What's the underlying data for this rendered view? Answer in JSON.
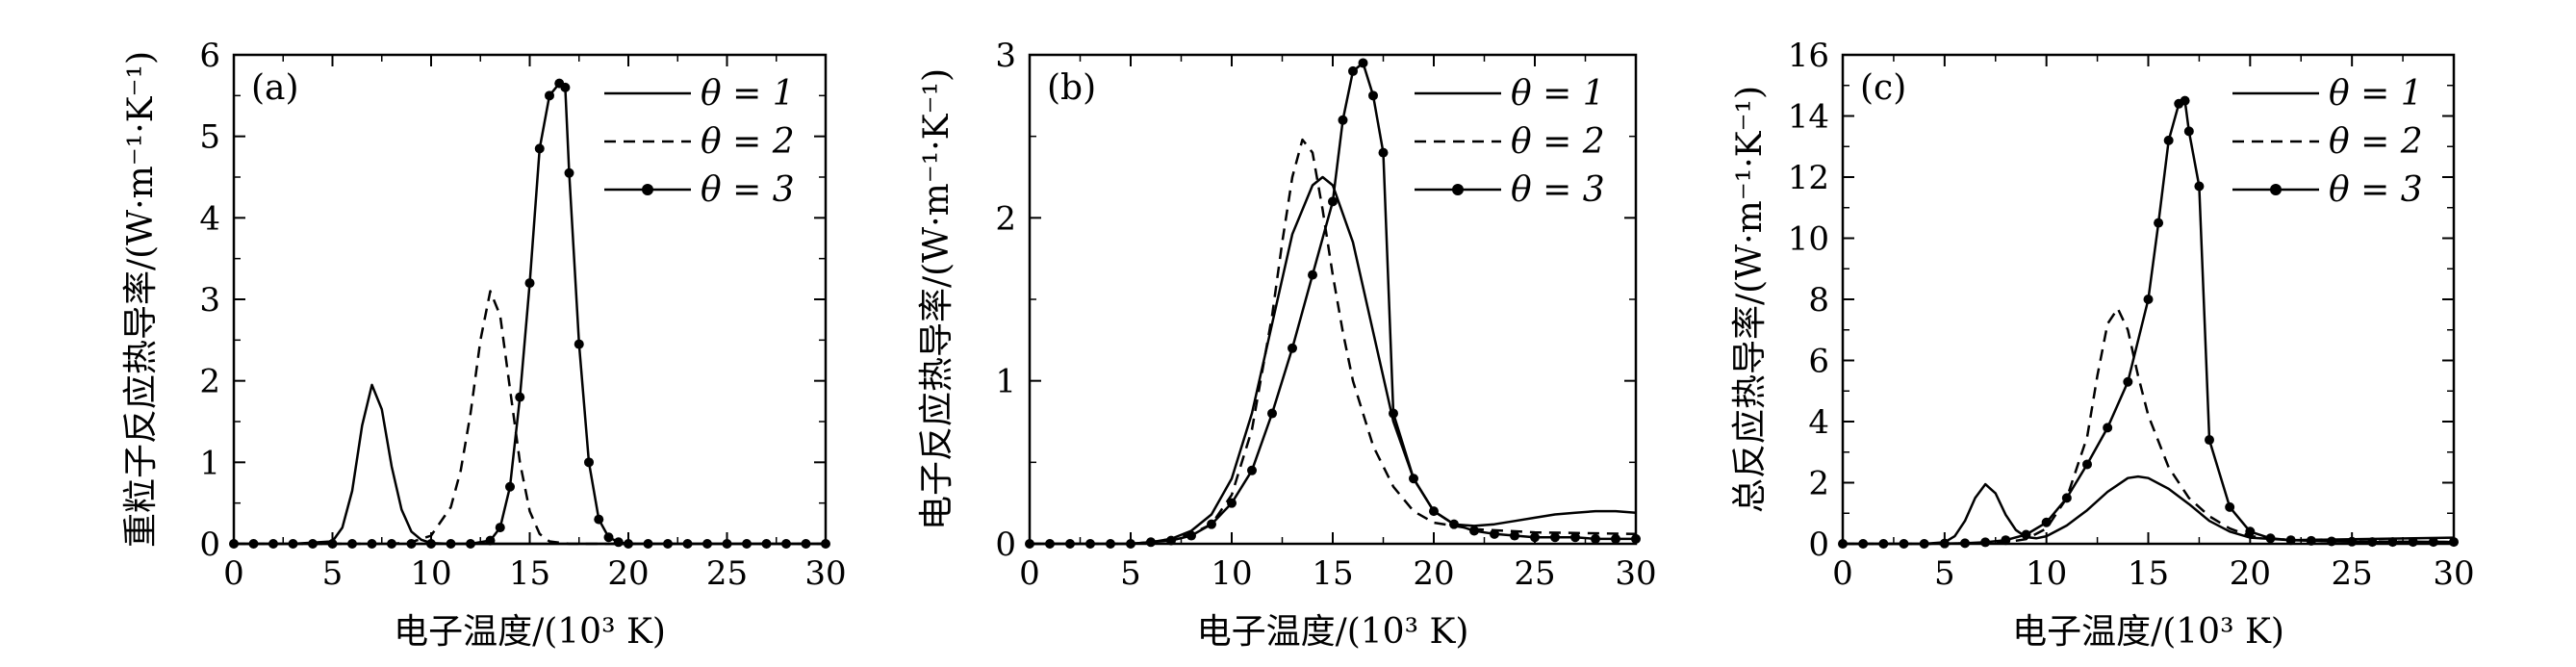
{
  "chart_data": [
    {
      "type": "line",
      "panel_label": "(a)",
      "xlabel": "电子温度/(10³ K)",
      "ylabel": "重粒子反应热导率/(W·m⁻¹·K⁻¹)",
      "xlim": [
        0,
        30
      ],
      "ylim": [
        0,
        6
      ],
      "xticks": [
        "0",
        "5",
        "10",
        "15",
        "20",
        "25",
        "30"
      ],
      "yticks": [
        "0",
        "1",
        "2",
        "3",
        "4",
        "5",
        "6"
      ],
      "legend_position": "top-right",
      "series": [
        {
          "name": "θ = 1",
          "style": "solid",
          "marker": "none",
          "x": [
            0,
            3,
            5,
            5.5,
            6,
            6.5,
            7,
            7.5,
            8,
            8.5,
            9,
            9.5,
            10,
            11,
            12,
            15,
            20,
            25,
            30
          ],
          "y": [
            0,
            0,
            0.03,
            0.2,
            0.65,
            1.45,
            1.95,
            1.65,
            0.95,
            0.42,
            0.15,
            0.05,
            0.01,
            0,
            0,
            0,
            0,
            0,
            0
          ]
        },
        {
          "name": "θ = 2",
          "style": "dashed",
          "marker": "none",
          "x": [
            0,
            5,
            8,
            9,
            10,
            11,
            11.5,
            12,
            12.5,
            13,
            13.5,
            14,
            14.5,
            15,
            15.5,
            16,
            17,
            20,
            30
          ],
          "y": [
            0,
            0,
            0,
            0.02,
            0.1,
            0.45,
            0.9,
            1.6,
            2.5,
            3.1,
            2.8,
            1.9,
            1.0,
            0.4,
            0.12,
            0.03,
            0,
            0,
            0
          ]
        },
        {
          "name": "θ = 3",
          "style": "solid",
          "marker": "dot",
          "x": [
            0,
            1,
            2,
            3,
            4,
            5,
            6,
            7,
            8,
            9,
            10,
            11,
            12,
            13,
            13.5,
            14,
            14.5,
            15,
            15.5,
            16,
            16.5,
            16.8,
            17,
            17.5,
            18,
            18.5,
            19,
            19.5,
            20,
            21,
            22,
            23,
            24,
            25,
            26,
            27,
            28,
            29,
            30
          ],
          "y": [
            0,
            0,
            0,
            0,
            0,
            0,
            0,
            0,
            0,
            0,
            0,
            0,
            0,
            0.04,
            0.2,
            0.7,
            1.8,
            3.2,
            4.85,
            5.5,
            5.65,
            5.6,
            4.55,
            2.45,
            1.0,
            0.3,
            0.08,
            0.02,
            0,
            0,
            0,
            0,
            0,
            0,
            0,
            0,
            0,
            0,
            0
          ]
        }
      ]
    },
    {
      "type": "line",
      "panel_label": "(b)",
      "xlabel": "电子温度/(10³ K)",
      "ylabel": "电子反应热导率/(W·m⁻¹·K⁻¹)",
      "xlim": [
        0,
        30
      ],
      "ylim": [
        0,
        3
      ],
      "xticks": [
        "0",
        "5",
        "10",
        "15",
        "20",
        "25",
        "30"
      ],
      "yticks": [
        "0",
        "1",
        "2",
        "3"
      ],
      "legend_position": "top-right",
      "series": [
        {
          "name": "θ = 1",
          "style": "solid",
          "marker": "none",
          "x": [
            0,
            5,
            6,
            7,
            8,
            9,
            10,
            11,
            12,
            13,
            14,
            14.5,
            15,
            16,
            17,
            18,
            19,
            20,
            21,
            22,
            23,
            24,
            25,
            26,
            27,
            28,
            29,
            30
          ],
          "y": [
            0,
            0,
            0.01,
            0.03,
            0.08,
            0.18,
            0.4,
            0.8,
            1.35,
            1.9,
            2.2,
            2.25,
            2.2,
            1.85,
            1.3,
            0.75,
            0.4,
            0.2,
            0.12,
            0.11,
            0.12,
            0.14,
            0.16,
            0.18,
            0.19,
            0.2,
            0.2,
            0.19
          ]
        },
        {
          "name": "θ = 2",
          "style": "dashed",
          "marker": "none",
          "x": [
            0,
            5,
            6,
            7,
            8,
            9,
            10,
            11,
            12,
            12.5,
            13,
            13.5,
            14,
            14.5,
            15,
            15.5,
            16,
            17,
            18,
            19,
            20,
            22,
            25,
            30
          ],
          "y": [
            0,
            0,
            0.01,
            0.03,
            0.06,
            0.12,
            0.3,
            0.7,
            1.4,
            1.85,
            2.25,
            2.48,
            2.4,
            2.05,
            1.65,
            1.3,
            1.0,
            0.6,
            0.35,
            0.2,
            0.13,
            0.09,
            0.07,
            0.06
          ]
        },
        {
          "name": "θ = 3",
          "style": "solid",
          "marker": "dot",
          "x": [
            0,
            1,
            2,
            3,
            4,
            5,
            6,
            7,
            8,
            9,
            10,
            11,
            12,
            13,
            14,
            15,
            15.5,
            16,
            16.5,
            17,
            17.5,
            18,
            19,
            20,
            21,
            22,
            23,
            24,
            25,
            26,
            27,
            28,
            29,
            30
          ],
          "y": [
            0,
            0,
            0,
            0,
            0,
            0,
            0.01,
            0.02,
            0.05,
            0.12,
            0.25,
            0.45,
            0.8,
            1.2,
            1.65,
            2.1,
            2.6,
            2.9,
            2.95,
            2.75,
            2.4,
            0.8,
            0.4,
            0.2,
            0.12,
            0.08,
            0.06,
            0.05,
            0.04,
            0.04,
            0.04,
            0.03,
            0.03,
            0.03
          ]
        }
      ]
    },
    {
      "type": "line",
      "panel_label": "(c)",
      "xlabel": "电子温度/(10³ K)",
      "ylabel": "总反应热导率/(W·m⁻¹·K⁻¹)",
      "xlim": [
        0,
        30
      ],
      "ylim": [
        0,
        16
      ],
      "xticks": [
        "0",
        "5",
        "10",
        "15",
        "20",
        "25",
        "30"
      ],
      "yticks": [
        "0",
        "2",
        "4",
        "6",
        "8",
        "10",
        "12",
        "14",
        "16"
      ],
      "legend_position": "top-right",
      "series": [
        {
          "name": "θ = 1",
          "style": "solid",
          "marker": "none",
          "x": [
            0,
            4,
            5,
            5.5,
            6,
            6.5,
            7,
            7.5,
            8,
            8.5,
            9,
            9.5,
            10,
            11,
            12,
            13,
            14,
            14.5,
            15,
            16,
            17,
            18,
            19,
            20,
            22,
            25,
            30
          ],
          "y": [
            0,
            0,
            0.05,
            0.25,
            0.75,
            1.5,
            1.95,
            1.65,
            0.95,
            0.45,
            0.22,
            0.18,
            0.25,
            0.6,
            1.1,
            1.7,
            2.15,
            2.2,
            2.15,
            1.8,
            1.3,
            0.75,
            0.4,
            0.2,
            0.12,
            0.15,
            0.2
          ]
        },
        {
          "name": "θ = 2",
          "style": "dashed",
          "marker": "none",
          "x": [
            0,
            5,
            8,
            9,
            10,
            11,
            12,
            12.5,
            13,
            13.5,
            14,
            14.5,
            15,
            16,
            17,
            18,
            19,
            20,
            22,
            25,
            30
          ],
          "y": [
            0,
            0,
            0.05,
            0.15,
            0.5,
            1.5,
            3.5,
            5.5,
            7.2,
            7.7,
            7.0,
            5.5,
            4.2,
            2.5,
            1.5,
            0.9,
            0.5,
            0.25,
            0.12,
            0.08,
            0.06
          ]
        },
        {
          "name": "θ = 3",
          "style": "solid",
          "marker": "dot",
          "x": [
            0,
            1,
            2,
            3,
            4,
            5,
            6,
            7,
            8,
            9,
            10,
            11,
            12,
            13,
            14,
            15,
            15.5,
            16,
            16.5,
            16.8,
            17,
            17.5,
            18,
            19,
            20,
            21,
            22,
            23,
            24,
            25,
            26,
            27,
            28,
            29,
            30
          ],
          "y": [
            0,
            0,
            0,
            0,
            0,
            0.01,
            0.02,
            0.05,
            0.12,
            0.3,
            0.7,
            1.5,
            2.6,
            3.8,
            5.3,
            8.0,
            10.5,
            13.2,
            14.4,
            14.5,
            13.5,
            11.7,
            3.4,
            1.2,
            0.4,
            0.18,
            0.12,
            0.1,
            0.08,
            0.07,
            0.06,
            0.06,
            0.06,
            0.06,
            0.06
          ]
        }
      ]
    }
  ]
}
